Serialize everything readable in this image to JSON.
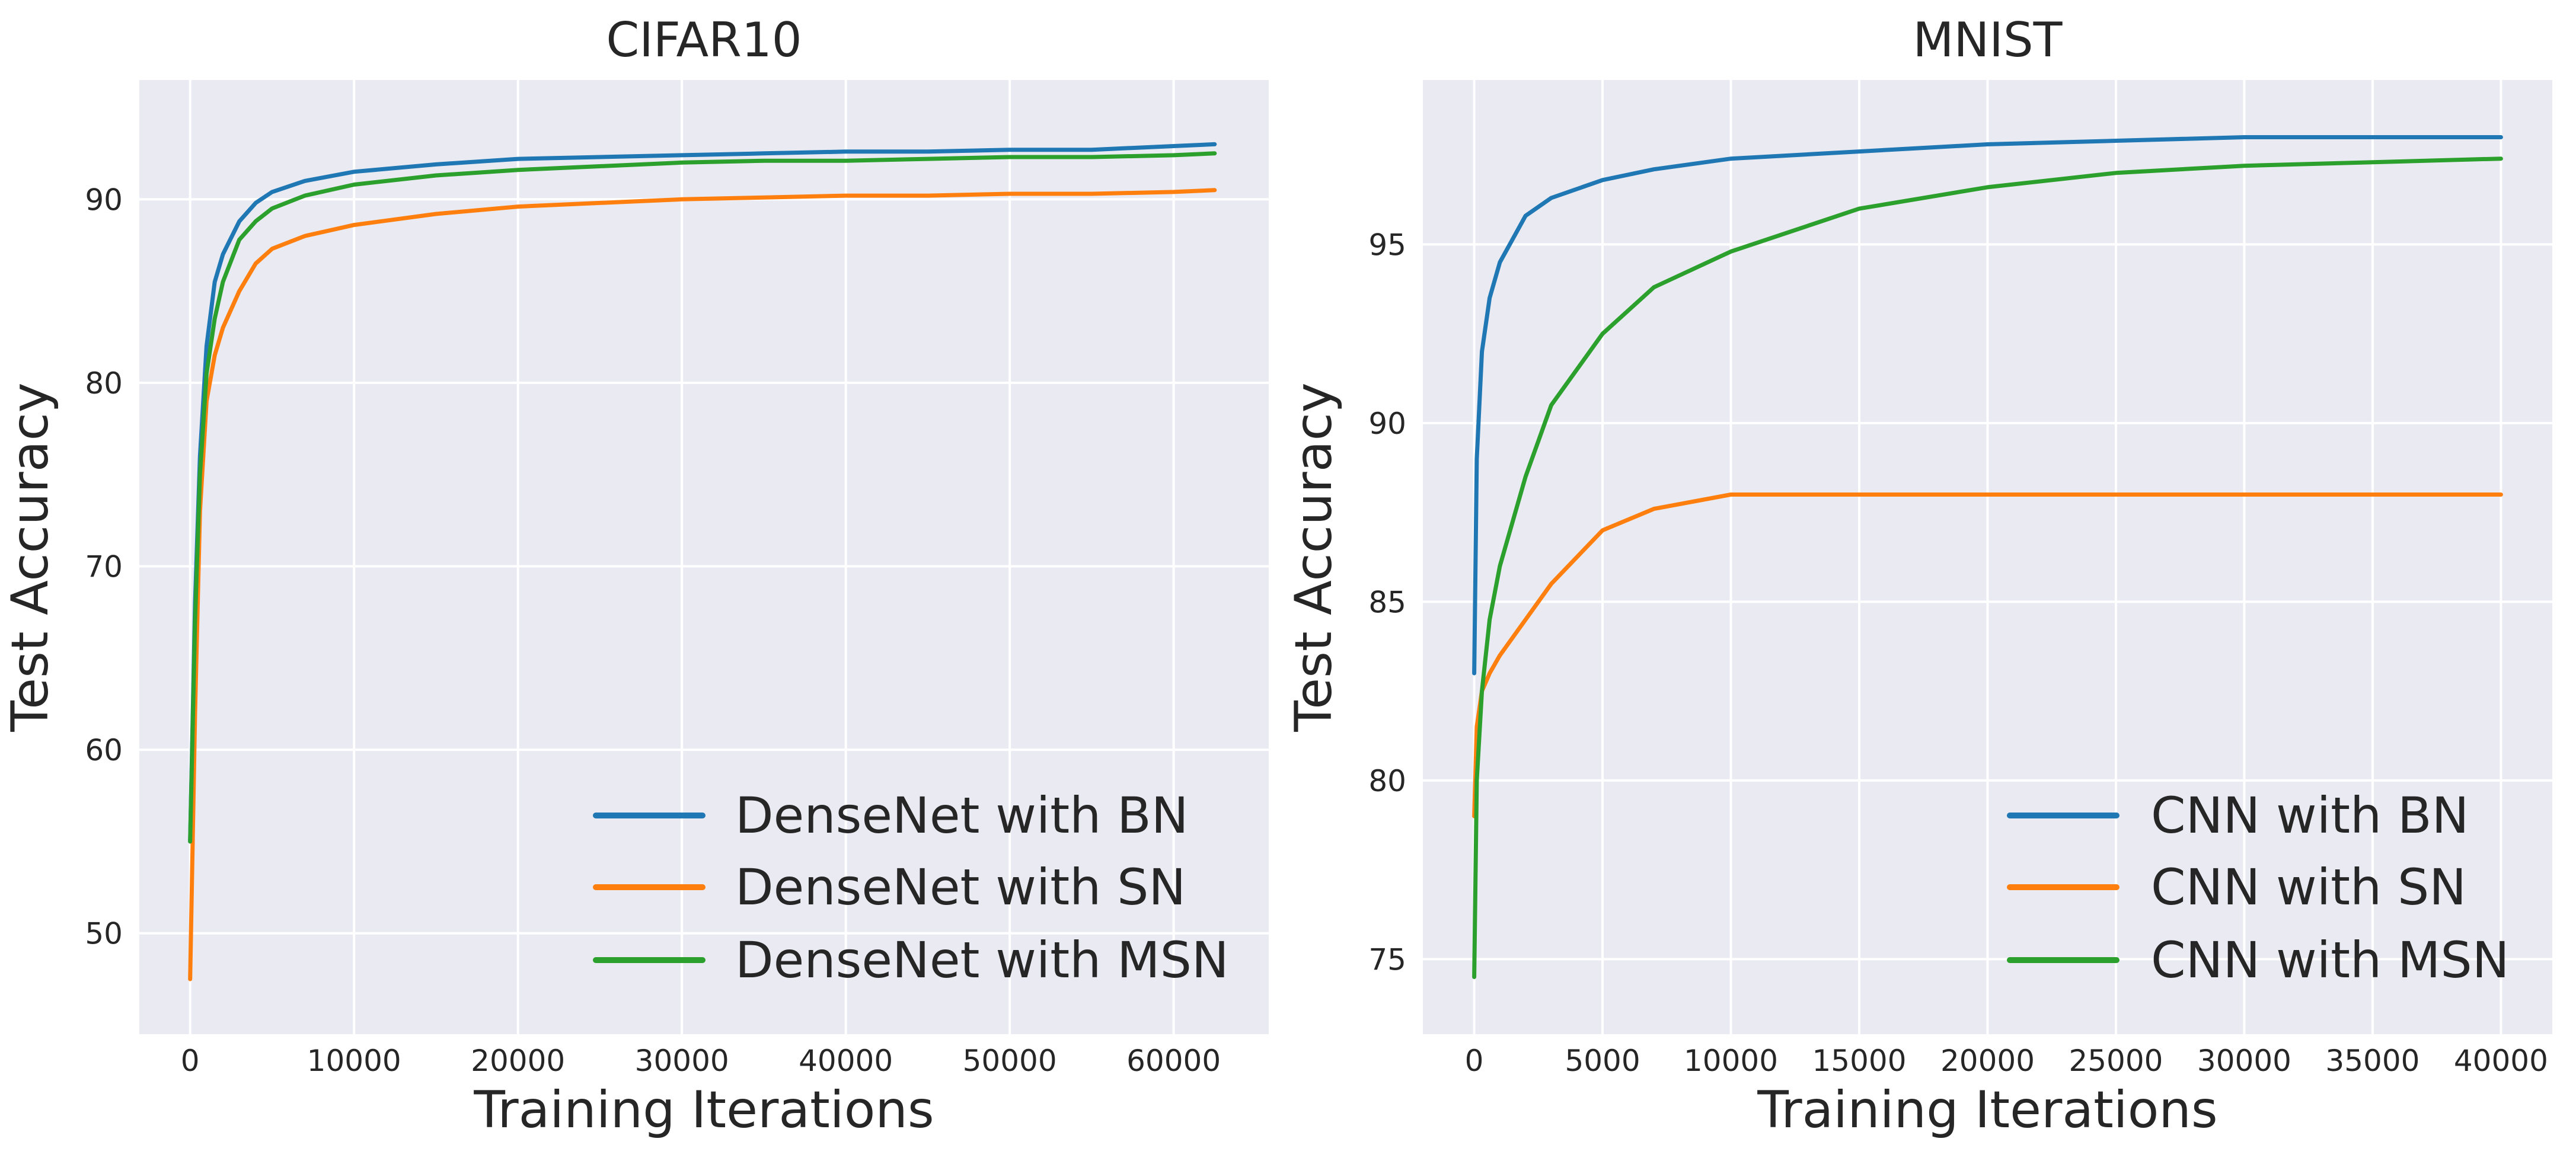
{
  "chart_data": [
    {
      "type": "line",
      "title": "CIFAR10",
      "xlabel": "Training Iterations",
      "ylabel": "Test Accuracy",
      "xlim": [
        -3100,
        65800
      ],
      "ylim": [
        44.5,
        96.5
      ],
      "xticks": [
        0,
        10000,
        20000,
        30000,
        40000,
        50000,
        60000
      ],
      "yticks": [
        50,
        60,
        70,
        80,
        90
      ],
      "grid": true,
      "legend_position": "lower-right",
      "series": [
        {
          "name": "DenseNet with BN",
          "color": "#1f77b4",
          "x": [
            0,
            300,
            600,
            1000,
            1500,
            2000,
            3000,
            4000,
            5000,
            7000,
            10000,
            15000,
            20000,
            25000,
            30000,
            35000,
            40000,
            45000,
            50000,
            55000,
            60000,
            62500
          ],
          "y": [
            55,
            68,
            76,
            82,
            85.5,
            87,
            88.8,
            89.8,
            90.4,
            91,
            91.5,
            91.9,
            92.2,
            92.3,
            92.4,
            92.5,
            92.6,
            92.6,
            92.7,
            92.7,
            92.9,
            93
          ]
        },
        {
          "name": "DenseNet with SN",
          "color": "#ff7f0e",
          "x": [
            0,
            300,
            600,
            1000,
            1500,
            2000,
            3000,
            4000,
            5000,
            7000,
            10000,
            15000,
            20000,
            25000,
            30000,
            35000,
            40000,
            45000,
            50000,
            55000,
            60000,
            62500
          ],
          "y": [
            47.5,
            62,
            73,
            79,
            81.5,
            83,
            85,
            86.5,
            87.3,
            88,
            88.6,
            89.2,
            89.6,
            89.8,
            90,
            90.1,
            90.2,
            90.2,
            90.3,
            90.3,
            90.4,
            90.5
          ]
        },
        {
          "name": "DenseNet with MSN",
          "color": "#2ca02c",
          "x": [
            0,
            300,
            600,
            1000,
            1500,
            2000,
            3000,
            4000,
            5000,
            7000,
            10000,
            15000,
            20000,
            25000,
            30000,
            35000,
            40000,
            45000,
            50000,
            55000,
            60000,
            62500
          ],
          "y": [
            55,
            67,
            75,
            80.5,
            83.5,
            85.5,
            87.8,
            88.8,
            89.5,
            90.2,
            90.8,
            91.3,
            91.6,
            91.8,
            92,
            92.1,
            92.1,
            92.2,
            92.3,
            92.3,
            92.4,
            92.5
          ]
        }
      ]
    },
    {
      "type": "line",
      "title": "MNIST",
      "xlabel": "Training Iterations",
      "ylabel": "Test Accuracy",
      "xlim": [
        -2000,
        42000
      ],
      "ylim": [
        72.9,
        99.6
      ],
      "xticks": [
        0,
        5000,
        10000,
        15000,
        20000,
        25000,
        30000,
        35000,
        40000
      ],
      "yticks": [
        75,
        80,
        85,
        90,
        95
      ],
      "grid": true,
      "legend_position": "lower-right",
      "series": [
        {
          "name": "CNN with BN",
          "color": "#1f77b4",
          "x": [
            0,
            100,
            300,
            600,
            1000,
            2000,
            3000,
            5000,
            7000,
            10000,
            15000,
            20000,
            25000,
            30000,
            35000,
            40000
          ],
          "y": [
            83,
            89,
            92,
            93.5,
            94.5,
            95.8,
            96.3,
            96.8,
            97.1,
            97.4,
            97.6,
            97.8,
            97.9,
            98,
            98,
            98
          ]
        },
        {
          "name": "CNN with SN",
          "color": "#ff7f0e",
          "x": [
            0,
            100,
            300,
            600,
            1000,
            2000,
            3000,
            5000,
            7000,
            10000,
            15000,
            20000,
            25000,
            30000,
            35000,
            40000
          ],
          "y": [
            79,
            81.5,
            82.5,
            83,
            83.5,
            84.5,
            85.5,
            87,
            87.6,
            88,
            88,
            88,
            88,
            88,
            88,
            88
          ]
        },
        {
          "name": "CNN with MSN",
          "color": "#2ca02c",
          "x": [
            0,
            100,
            300,
            600,
            1000,
            2000,
            3000,
            5000,
            7000,
            10000,
            15000,
            20000,
            25000,
            30000,
            35000,
            40000
          ],
          "y": [
            74.5,
            80,
            82.5,
            84.5,
            86,
            88.5,
            90.5,
            92.5,
            93.8,
            94.8,
            96,
            96.6,
            97,
            97.2,
            97.3,
            97.4
          ]
        }
      ]
    }
  ]
}
